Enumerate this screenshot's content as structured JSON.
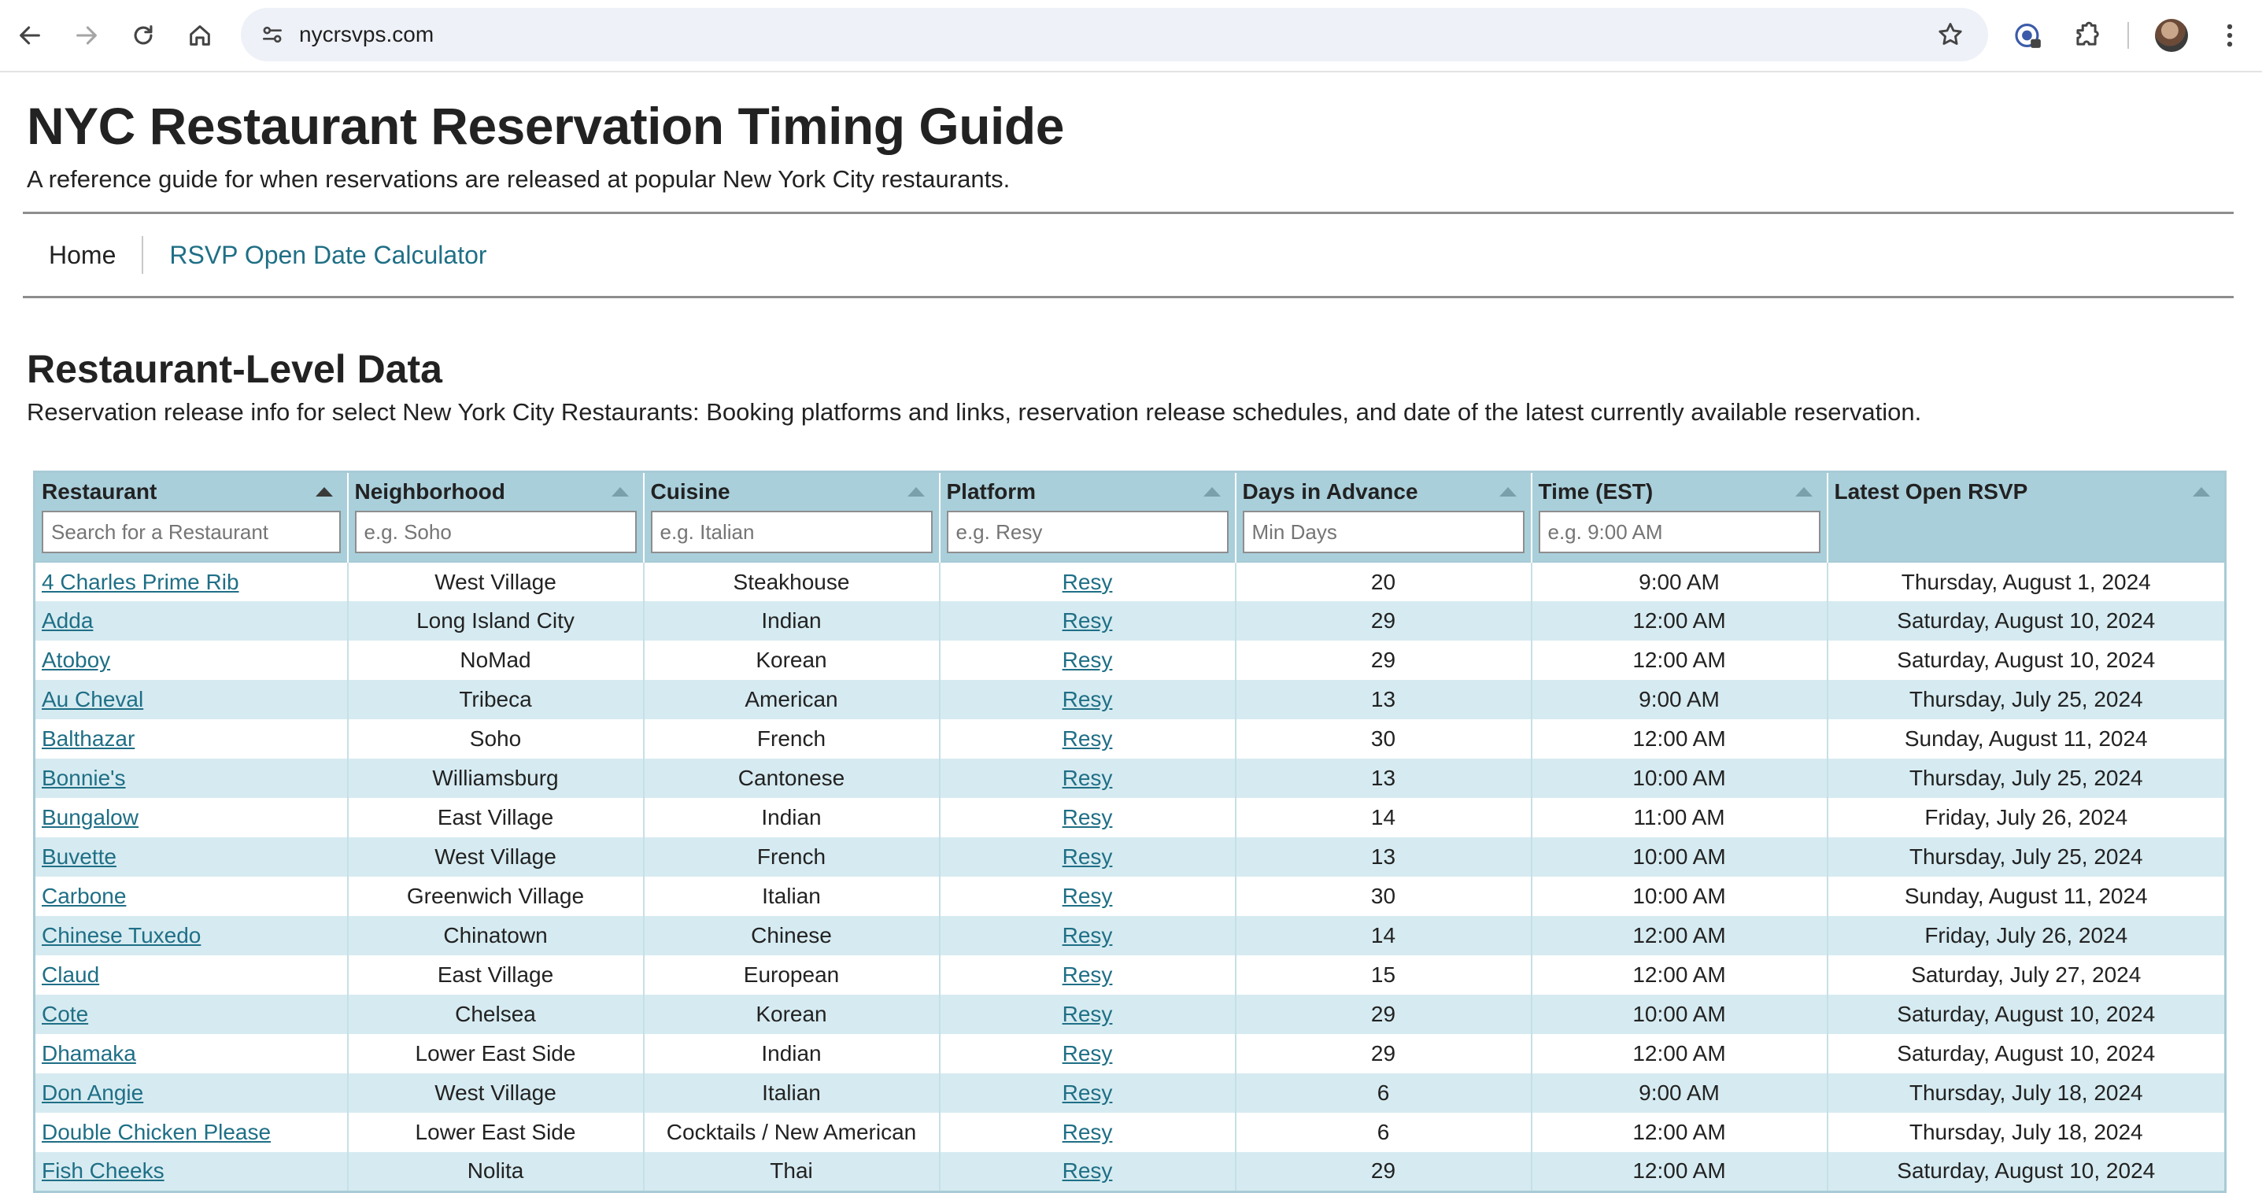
{
  "browser": {
    "url": "nycrsvps.com",
    "icons": [
      "back-arrow-icon",
      "forward-arrow-icon",
      "reload-icon",
      "home-icon",
      "site-settings-icon",
      "bookmark-star-icon",
      "extension-badge-icon",
      "extensions-puzzle-icon",
      "profile-avatar",
      "more-menu-icon"
    ]
  },
  "page": {
    "title": "NYC Restaurant Reservation Timing Guide",
    "subtitle": "A reference guide for when reservations are released at popular New York City restaurants."
  },
  "nav": {
    "home": "Home",
    "calculator": "RSVP Open Date Calculator"
  },
  "section": {
    "title": "Restaurant-Level Data",
    "description": "Reservation release info for select New York City Restaurants: Booking platforms and links, reservation release schedules, and date of the latest currently available reservation."
  },
  "table": {
    "headers": [
      "Restaurant",
      "Neighborhood",
      "Cuisine",
      "Platform",
      "Days in Advance",
      "Time (EST)",
      "Latest Open RSVP"
    ],
    "filters": {
      "restaurant": "Search for a Restaurant",
      "neighborhood": "e.g. Soho",
      "cuisine": "e.g. Italian",
      "platform": "e.g. Resy",
      "days": "Min Days",
      "time": "e.g. 9:00 AM"
    },
    "rows": [
      {
        "restaurant": "4 Charles Prime Rib",
        "neighborhood": "West Village",
        "cuisine": "Steakhouse",
        "platform": "Resy",
        "days": "20",
        "time": "9:00 AM",
        "latest": "Thursday, August 1, 2024"
      },
      {
        "restaurant": "Adda",
        "neighborhood": "Long Island City",
        "cuisine": "Indian",
        "platform": "Resy",
        "days": "29",
        "time": "12:00 AM",
        "latest": "Saturday, August 10, 2024"
      },
      {
        "restaurant": "Atoboy",
        "neighborhood": "NoMad",
        "cuisine": "Korean",
        "platform": "Resy",
        "days": "29",
        "time": "12:00 AM",
        "latest": "Saturday, August 10, 2024"
      },
      {
        "restaurant": "Au Cheval",
        "neighborhood": "Tribeca",
        "cuisine": "American",
        "platform": "Resy",
        "days": "13",
        "time": "9:00 AM",
        "latest": "Thursday, July 25, 2024"
      },
      {
        "restaurant": "Balthazar",
        "neighborhood": "Soho",
        "cuisine": "French",
        "platform": "Resy",
        "days": "30",
        "time": "12:00 AM",
        "latest": "Sunday, August 11, 2024"
      },
      {
        "restaurant": "Bonnie's",
        "neighborhood": "Williamsburg",
        "cuisine": "Cantonese",
        "platform": "Resy",
        "days": "13",
        "time": "10:00 AM",
        "latest": "Thursday, July 25, 2024"
      },
      {
        "restaurant": "Bungalow",
        "neighborhood": "East Village",
        "cuisine": "Indian",
        "platform": "Resy",
        "days": "14",
        "time": "11:00 AM",
        "latest": "Friday, July 26, 2024"
      },
      {
        "restaurant": "Buvette",
        "neighborhood": "West Village",
        "cuisine": "French",
        "platform": "Resy",
        "days": "13",
        "time": "10:00 AM",
        "latest": "Thursday, July 25, 2024"
      },
      {
        "restaurant": "Carbone",
        "neighborhood": "Greenwich Village",
        "cuisine": "Italian",
        "platform": "Resy",
        "days": "30",
        "time": "10:00 AM",
        "latest": "Sunday, August 11, 2024"
      },
      {
        "restaurant": "Chinese Tuxedo",
        "neighborhood": "Chinatown",
        "cuisine": "Chinese",
        "platform": "Resy",
        "days": "14",
        "time": "12:00 AM",
        "latest": "Friday, July 26, 2024"
      },
      {
        "restaurant": "Claud",
        "neighborhood": "East Village",
        "cuisine": "European",
        "platform": "Resy",
        "days": "15",
        "time": "12:00 AM",
        "latest": "Saturday, July 27, 2024"
      },
      {
        "restaurant": "Cote",
        "neighborhood": "Chelsea",
        "cuisine": "Korean",
        "platform": "Resy",
        "days": "29",
        "time": "10:00 AM",
        "latest": "Saturday, August 10, 2024"
      },
      {
        "restaurant": "Dhamaka",
        "neighborhood": "Lower East Side",
        "cuisine": "Indian",
        "platform": "Resy",
        "days": "29",
        "time": "12:00 AM",
        "latest": "Saturday, August 10, 2024"
      },
      {
        "restaurant": "Don Angie",
        "neighborhood": "West Village",
        "cuisine": "Italian",
        "platform": "Resy",
        "days": "6",
        "time": "9:00 AM",
        "latest": "Thursday, July 18, 2024"
      },
      {
        "restaurant": "Double Chicken Please",
        "neighborhood": "Lower East Side",
        "cuisine": "Cocktails / New American",
        "platform": "Resy",
        "days": "6",
        "time": "12:00 AM",
        "latest": "Thursday, July 18, 2024"
      },
      {
        "restaurant": "Fish Cheeks",
        "neighborhood": "Nolita",
        "cuisine": "Thai",
        "platform": "Resy",
        "days": "29",
        "time": "12:00 AM",
        "latest": "Saturday, August 10, 2024"
      }
    ]
  }
}
